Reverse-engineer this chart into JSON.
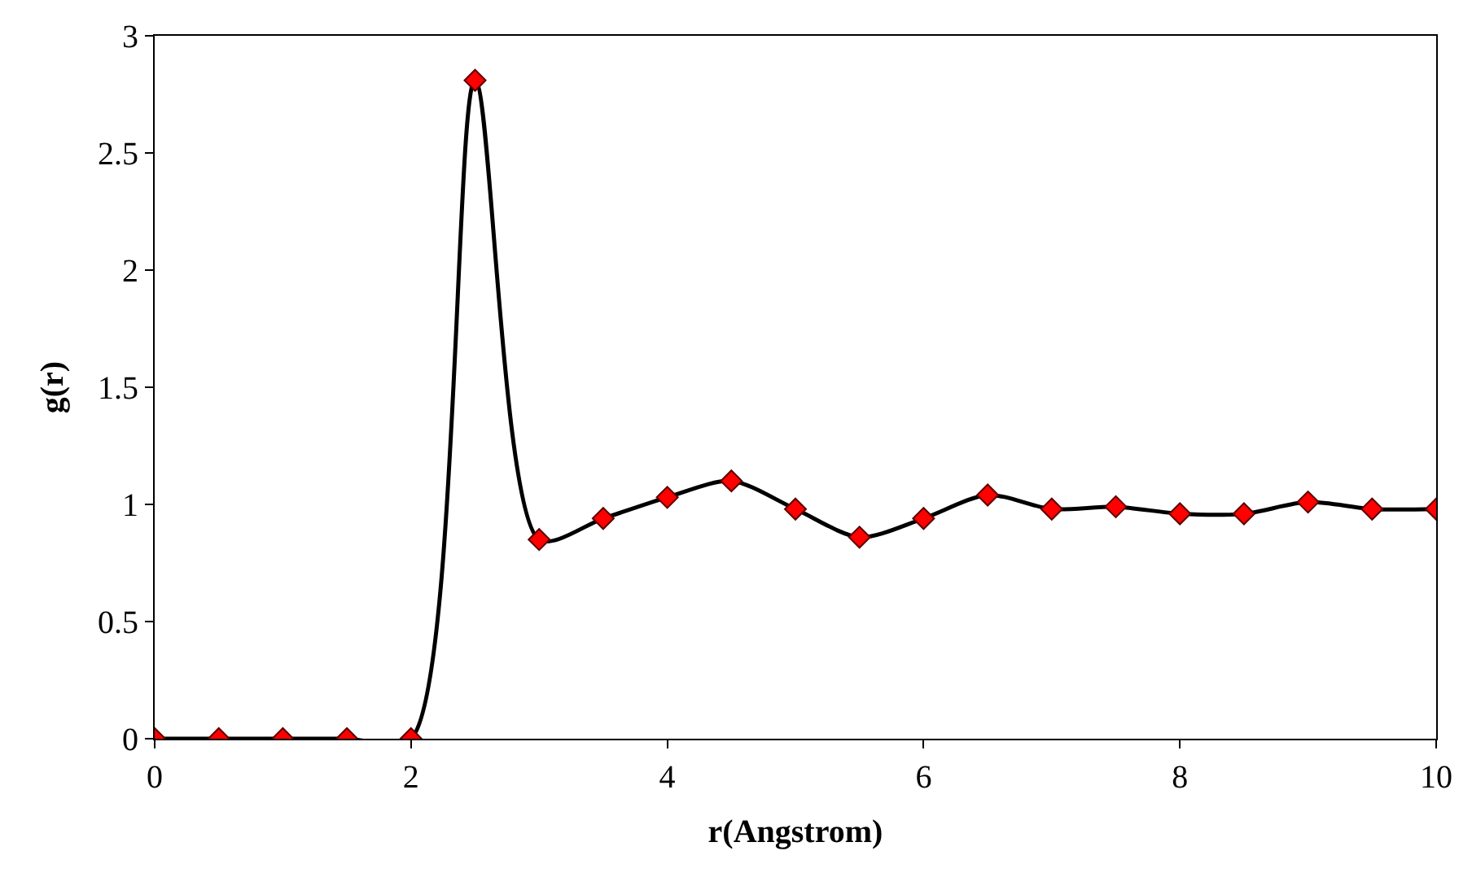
{
  "chart_data": {
    "type": "line",
    "xlabel": "r(Angstrom)",
    "ylabel": "g(r)",
    "x": [
      0,
      0.5,
      1,
      1.5,
      2,
      2.5,
      3,
      3.5,
      4,
      4.5,
      5,
      5.5,
      6,
      6.5,
      7,
      7.5,
      8,
      8.5,
      9,
      9.5,
      10
    ],
    "series": [
      {
        "color": "#000000",
        "marker": "none",
        "values": [
          0,
          0,
          0,
          0,
          0,
          2.81,
          0.85,
          0.94,
          1.03,
          1.1,
          0.98,
          0.86,
          0.94,
          1.04,
          0.98,
          0.99,
          0.96,
          0.96,
          1.01,
          0.98,
          0.98
        ]
      },
      {
        "type": "scatter",
        "color": "#ff0000",
        "marker": "diamond",
        "values": [
          0,
          0,
          0,
          0,
          0,
          2.81,
          0.85,
          0.94,
          1.03,
          1.1,
          0.98,
          0.86,
          0.94,
          1.04,
          0.98,
          0.99,
          0.96,
          0.96,
          1.01,
          0.98,
          0.98
        ]
      }
    ],
    "xlim": [
      0,
      10
    ],
    "xticks": [
      0,
      2,
      4,
      6,
      8,
      10
    ],
    "ylim": [
      0,
      3
    ],
    "yticks": [
      0,
      0.5,
      1,
      1.5,
      2,
      2.5,
      3
    ]
  }
}
